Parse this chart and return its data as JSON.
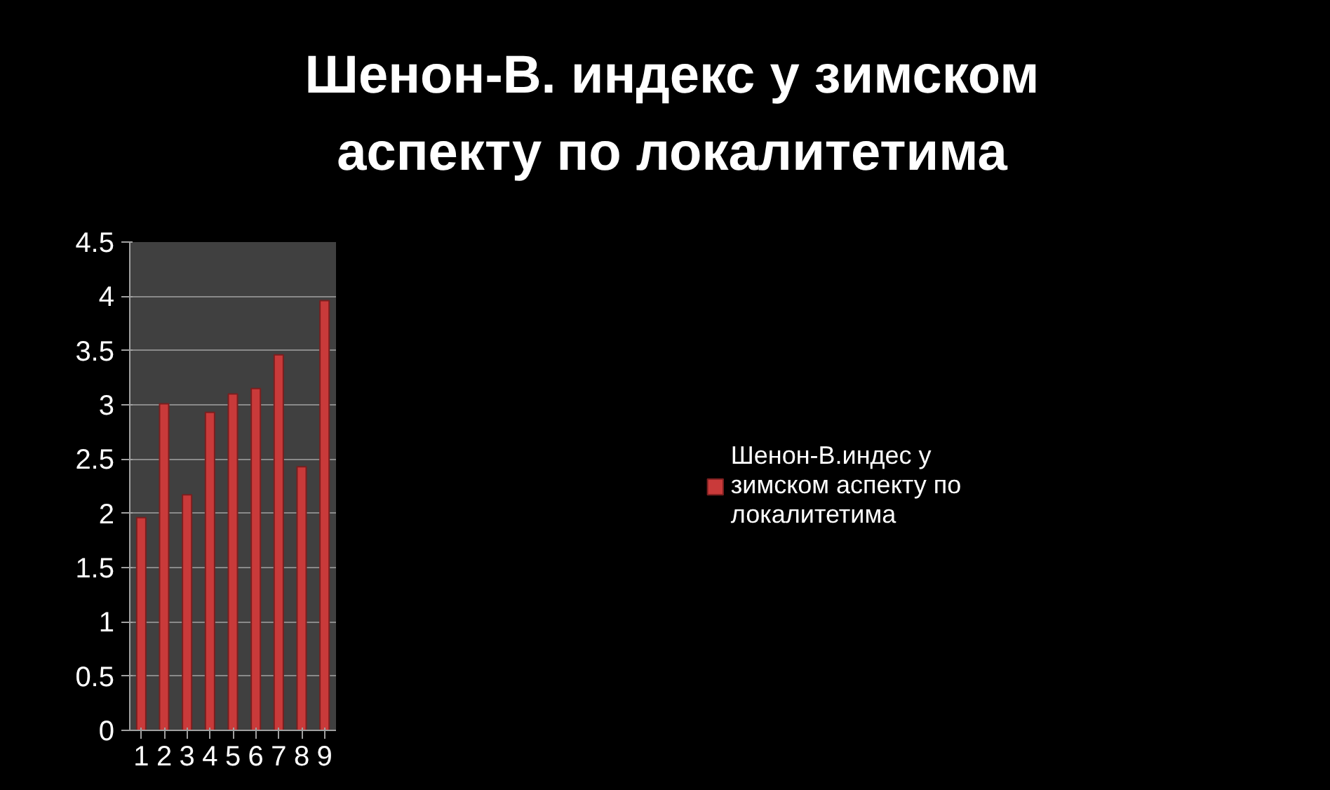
{
  "chart_data": {
    "type": "bar",
    "title": "Шенон-В. индекс у зимском аспекту по локалитетима",
    "categories": [
      "1",
      "2",
      "3",
      "4",
      "5",
      "6",
      "7",
      "8",
      "9"
    ],
    "series": [
      {
        "name": "Шенон-В.индес у зимском аспекту по локалитетима",
        "color": "#c93a3a",
        "values": [
          1.96,
          3.01,
          2.17,
          2.93,
          3.1,
          3.15,
          3.46,
          2.43,
          3.96
        ]
      }
    ],
    "ylim": [
      0,
      4.5
    ],
    "yticks": [
      0,
      0.5,
      1,
      1.5,
      2,
      2.5,
      3,
      3.5,
      4,
      4.5
    ],
    "grid": "y",
    "legend": "right"
  }
}
